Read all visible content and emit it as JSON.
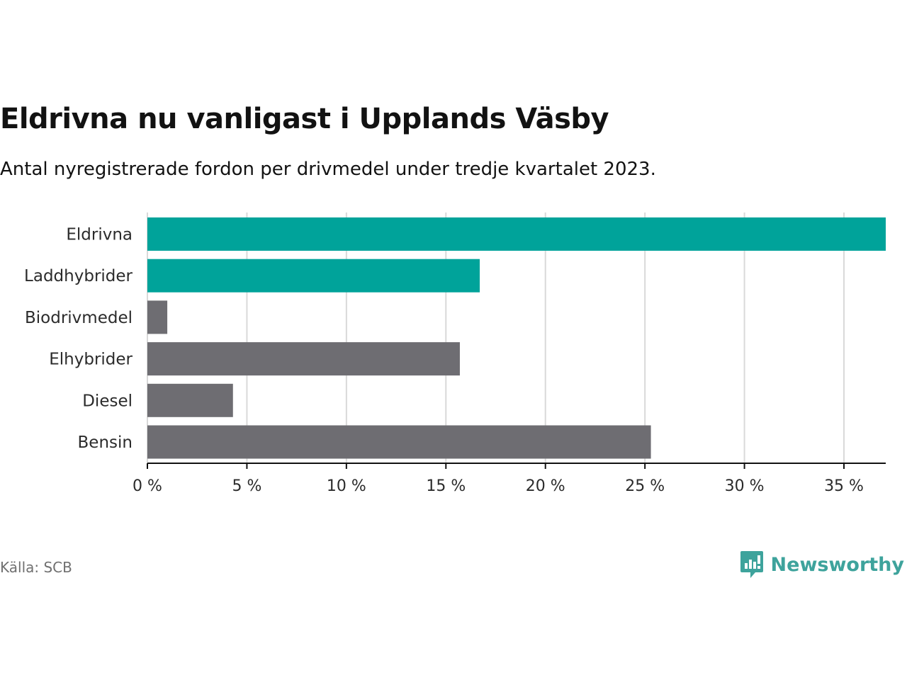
{
  "chart_data": {
    "type": "bar",
    "orientation": "horizontal",
    "title": "Eldrivna nu vanligast i Upplands Väsby",
    "subtitle": "Antal nyregistrerade fordon per drivmedel under tredje kvartalet 2023.",
    "categories": [
      "Eldrivna",
      "Laddhybrider",
      "Biodrivmedel",
      "Elhybrider",
      "Diesel",
      "Bensin"
    ],
    "values": [
      37.1,
      16.7,
      1.0,
      15.7,
      4.3,
      25.3
    ],
    "highlighted": [
      true,
      true,
      false,
      false,
      false,
      false
    ],
    "colors": {
      "highlight": "#00a39a",
      "default": "#6e6d72",
      "grid": "#d9d9d9",
      "axis": "#121212"
    },
    "xlim": [
      0,
      37.1
    ],
    "xticks": [
      0,
      5,
      10,
      15,
      20,
      25,
      30,
      35
    ],
    "xtick_labels": [
      "0 %",
      "5 %",
      "10 %",
      "15 %",
      "20 %",
      "25 %",
      "30 %",
      "35 %"
    ],
    "grid": true
  },
  "footer": {
    "source": "Källa: SCB",
    "brand": "Newsworthy",
    "brand_icon": "newsworthy-logo-icon"
  }
}
